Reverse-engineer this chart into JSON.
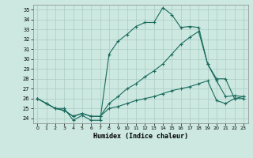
{
  "xlabel": "Humidex (Indice chaleur)",
  "ylabel": "",
  "xlim": [
    -0.5,
    23.5
  ],
  "ylim": [
    23.5,
    35.5
  ],
  "xticks": [
    0,
    1,
    2,
    3,
    4,
    5,
    6,
    7,
    8,
    9,
    10,
    11,
    12,
    13,
    14,
    15,
    16,
    17,
    18,
    19,
    20,
    21,
    22,
    23
  ],
  "yticks": [
    24,
    25,
    26,
    27,
    28,
    29,
    30,
    31,
    32,
    33,
    34,
    35
  ],
  "bg_color": "#cce8e0",
  "line_color": "#1a6b5e",
  "grid_color": "#aaccC4",
  "line1_x": [
    0,
    1,
    2,
    3,
    4,
    5,
    6,
    7,
    8,
    9,
    10,
    11,
    12,
    13,
    14,
    15,
    16,
    17,
    18,
    19,
    20,
    21,
    22,
    23
  ],
  "line1_y": [
    26,
    25.5,
    25,
    25,
    23.8,
    24.3,
    23.8,
    23.8,
    30.5,
    31.8,
    32.5,
    33.3,
    33.7,
    33.7,
    35.2,
    34.5,
    33.2,
    33.3,
    33.2,
    29.5,
    27.8,
    26.2,
    26.3,
    26.2
  ],
  "line2_x": [
    0,
    1,
    2,
    3,
    4,
    5,
    6,
    7,
    8,
    9,
    10,
    11,
    12,
    13,
    14,
    15,
    16,
    17,
    18,
    19,
    20,
    21,
    22,
    23
  ],
  "line2_y": [
    26,
    25.5,
    25,
    24.8,
    24.2,
    24.5,
    24.2,
    24.2,
    25.5,
    26.2,
    27.0,
    27.5,
    28.2,
    28.8,
    29.5,
    30.5,
    31.5,
    32.2,
    32.8,
    29.5,
    28.0,
    28.0,
    26.0,
    26.0
  ],
  "line3_x": [
    0,
    1,
    2,
    3,
    4,
    5,
    6,
    7,
    8,
    9,
    10,
    11,
    12,
    13,
    14,
    15,
    16,
    17,
    18,
    19,
    20,
    21,
    22,
    23
  ],
  "line3_y": [
    26,
    25.5,
    25,
    24.8,
    24.2,
    24.5,
    24.2,
    24.2,
    25.0,
    25.2,
    25.5,
    25.8,
    26.0,
    26.2,
    26.5,
    26.8,
    27.0,
    27.2,
    27.5,
    27.8,
    25.8,
    25.5,
    26.0,
    26.2
  ]
}
